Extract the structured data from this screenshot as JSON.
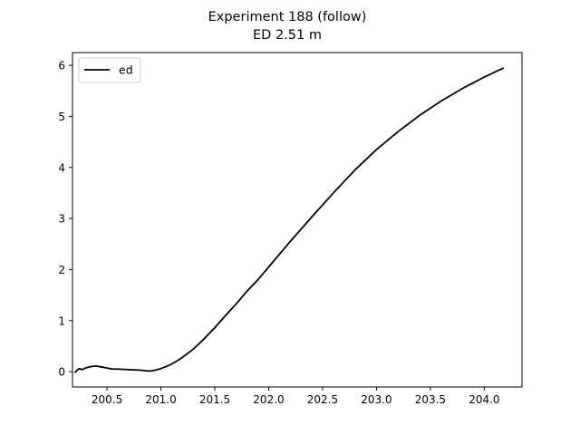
{
  "chart_data": {
    "type": "line",
    "title": "Experiment 188 (follow)",
    "subtitle": "ED 2.51 m",
    "xlabel": "",
    "ylabel": "",
    "xlim": [
      200.18,
      204.35
    ],
    "ylim": [
      -0.3,
      6.25
    ],
    "xticks": [
      200.5,
      201.0,
      201.5,
      202.0,
      202.5,
      203.0,
      203.5,
      204.0
    ],
    "yticks": [
      0,
      1,
      2,
      3,
      4,
      5,
      6
    ],
    "xtick_labels": [
      "200.5",
      "201.0",
      "201.5",
      "202.0",
      "202.5",
      "203.0",
      "203.5",
      "204.0"
    ],
    "ytick_labels": [
      "0",
      "1",
      "2",
      "3",
      "4",
      "5",
      "6"
    ],
    "grid": false,
    "legend_position": "top-left",
    "series": [
      {
        "name": "ed",
        "color": "#000000",
        "x": [
          200.2,
          200.24,
          200.27,
          200.3,
          200.35,
          200.4,
          200.45,
          200.5,
          200.55,
          200.6,
          200.7,
          200.8,
          200.85,
          200.9,
          200.95,
          201.0,
          201.05,
          201.1,
          201.15,
          201.2,
          201.3,
          201.4,
          201.5,
          201.6,
          201.7,
          201.8,
          201.9,
          202.0,
          202.2,
          202.4,
          202.6,
          202.8,
          203.0,
          203.2,
          203.4,
          203.6,
          203.8,
          204.0,
          204.1,
          204.18
        ],
        "y": [
          -0.02,
          0.06,
          0.04,
          0.07,
          0.1,
          0.11,
          0.09,
          0.07,
          0.05,
          0.05,
          0.04,
          0.03,
          0.02,
          0.01,
          0.03,
          0.06,
          0.1,
          0.15,
          0.21,
          0.28,
          0.44,
          0.64,
          0.86,
          1.1,
          1.33,
          1.58,
          1.8,
          2.05,
          2.55,
          3.03,
          3.5,
          3.95,
          4.35,
          4.7,
          5.02,
          5.3,
          5.55,
          5.77,
          5.87,
          5.95
        ]
      }
    ]
  }
}
